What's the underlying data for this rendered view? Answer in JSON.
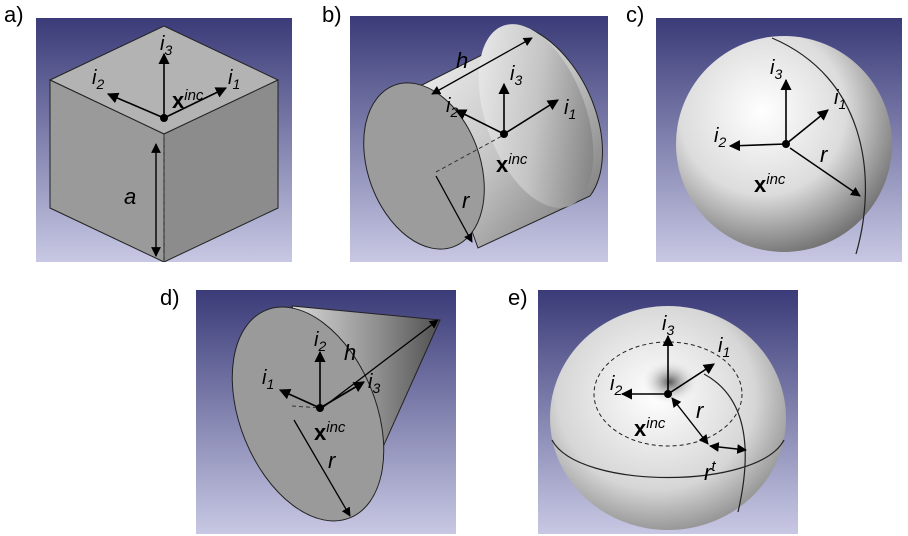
{
  "panels": {
    "a": {
      "label": "a)",
      "axes": {
        "i1": "i",
        "i1_sub": "1",
        "i2": "i",
        "i2_sub": "2",
        "i3": "i",
        "i3_sub": "3"
      },
      "origin": {
        "x": "x",
        "sup": "inc"
      },
      "dims": {
        "a": "a"
      }
    },
    "b": {
      "label": "b)",
      "axes": {
        "i1": "i",
        "i1_sub": "1",
        "i2": "i",
        "i2_sub": "2",
        "i3": "i",
        "i3_sub": "3"
      },
      "origin": {
        "x": "x",
        "sup": "inc"
      },
      "dims": {
        "h": "h",
        "r": "r"
      }
    },
    "c": {
      "label": "c)",
      "axes": {
        "i1": "i",
        "i1_sub": "1",
        "i2": "i",
        "i2_sub": "2",
        "i3": "i",
        "i3_sub": "3"
      },
      "origin": {
        "x": "x",
        "sup": "inc"
      },
      "dims": {
        "r": "r"
      }
    },
    "d": {
      "label": "d)",
      "axes": {
        "i1": "i",
        "i1_sub": "1",
        "i2": "i",
        "i2_sub": "2",
        "i3": "i",
        "i3_sub": "3"
      },
      "origin": {
        "x": "x",
        "sup": "inc"
      },
      "dims": {
        "h": "h",
        "r": "r"
      }
    },
    "e": {
      "label": "e)",
      "axes": {
        "i1": "i",
        "i1_sub": "1",
        "i2": "i",
        "i2_sub": "2",
        "i3": "i",
        "i3_sub": "3"
      },
      "origin": {
        "x": "x",
        "sup": "inc"
      },
      "dims": {
        "r": "r",
        "rt": "r",
        "rt_sup": "t"
      }
    }
  },
  "colors": {
    "bg_top": "#3c3d7a",
    "bg_bottom": "#c9c9e4",
    "shape_light": "#f2f2f2",
    "shape_mid": "#a8a8a8",
    "shape_dark": "#6e6e6e",
    "line": "#000000"
  }
}
